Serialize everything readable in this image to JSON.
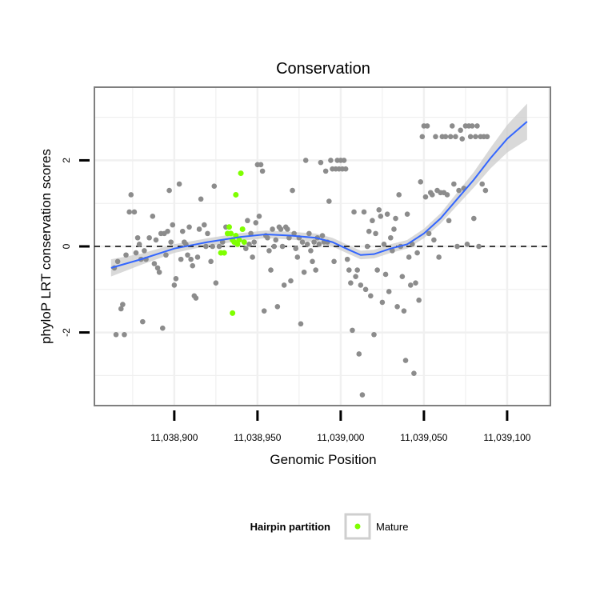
{
  "chart_data": {
    "type": "scatter",
    "title": "Conservation",
    "xlabel": "Genomic Position",
    "ylabel": "phyloP LRT conservation scores",
    "xlim": [
      11038852,
      11039126
    ],
    "ylim": [
      -3.7,
      3.7
    ],
    "x_ticks": [
      11038900,
      11038950,
      11039000,
      11039050,
      11039100
    ],
    "x_tick_labels": [
      "11,038,900",
      "11,038,950",
      "11,039,000",
      "11,039,050",
      "11,039,100"
    ],
    "y_ticks": [
      -2,
      0,
      2
    ],
    "y_tick_labels": [
      "-2",
      "0",
      "2"
    ],
    "reference_line_y": 0,
    "grid": true,
    "legend": {
      "title": "Hairpin partition",
      "placement": "bottom",
      "entries": [
        {
          "label": "Mature",
          "color": "#7FFF00"
        }
      ]
    },
    "colors": {
      "points": "#8c8c8c",
      "mature": "#7FFF00",
      "smooth_line": "#3366FF",
      "confidence_band": "#cccccc",
      "panel_background": "#ffffff",
      "grid": "#f0f0f0",
      "panel_border": "#7f7f7f"
    },
    "series": [
      {
        "name": "Mature",
        "points": [
          [
            11038932,
            0.3
          ],
          [
            11038933,
            0.45
          ],
          [
            11038934,
            0.3
          ],
          [
            11038935,
            0.15
          ],
          [
            11038936,
            0.1
          ],
          [
            11038937,
            0.25
          ],
          [
            11038938,
            0.05
          ],
          [
            11038939,
            0.15
          ],
          [
            11038940,
            1.7
          ],
          [
            11038937,
            1.2
          ],
          [
            11038941,
            0.4
          ],
          [
            11038942,
            0.1
          ],
          [
            11038928,
            -0.15
          ],
          [
            11038930,
            -0.15
          ],
          [
            11038935,
            -1.55
          ]
        ]
      },
      {
        "name": "",
        "points": [
          [
            11038864,
            -0.5
          ],
          [
            11038865,
            -2.05
          ],
          [
            11038866,
            -0.35
          ],
          [
            11038868,
            -1.45
          ],
          [
            11038869,
            -1.35
          ],
          [
            11038870,
            -2.05
          ],
          [
            11038871,
            -0.2
          ],
          [
            11038873,
            0.8
          ],
          [
            11038874,
            1.2
          ],
          [
            11038876,
            0.8
          ],
          [
            11038877,
            -0.15
          ],
          [
            11038878,
            0.2
          ],
          [
            11038879,
            0.05
          ],
          [
            11038880,
            -0.3
          ],
          [
            11038881,
            -1.75
          ],
          [
            11038882,
            -0.1
          ],
          [
            11038883,
            -0.3
          ],
          [
            11038885,
            0.2
          ],
          [
            11038887,
            0.7
          ],
          [
            11038888,
            -0.4
          ],
          [
            11038889,
            0.15
          ],
          [
            11038890,
            -0.5
          ],
          [
            11038891,
            -0.6
          ],
          [
            11038892,
            0.3
          ],
          [
            11038893,
            -1.9
          ],
          [
            11038894,
            0.3
          ],
          [
            11038895,
            -0.2
          ],
          [
            11038896,
            0.35
          ],
          [
            11038897,
            1.3
          ],
          [
            11038898,
            0.1
          ],
          [
            11038899,
            0.5
          ],
          [
            11038900,
            -0.9
          ],
          [
            11038901,
            -0.75
          ],
          [
            11038903,
            1.45
          ],
          [
            11038904,
            -0.3
          ],
          [
            11038905,
            0.35
          ],
          [
            11038906,
            0.1
          ],
          [
            11038907,
            0.05
          ],
          [
            11038908,
            -0.2
          ],
          [
            11038909,
            0.45
          ],
          [
            11038910,
            -0.3
          ],
          [
            11038911,
            -0.45
          ],
          [
            11038912,
            -1.15
          ],
          [
            11038913,
            -1.2
          ],
          [
            11038914,
            -0.25
          ],
          [
            11038915,
            0.4
          ],
          [
            11038916,
            1.1
          ],
          [
            11038918,
            0.5
          ],
          [
            11038919,
            0.0
          ],
          [
            11038920,
            0.3
          ],
          [
            11038922,
            -0.35
          ],
          [
            11038923,
            0.0
          ],
          [
            11038924,
            1.4
          ],
          [
            11038925,
            -0.85
          ],
          [
            11038927,
            0.0
          ],
          [
            11038929,
            0.1
          ],
          [
            11038931,
            0.45
          ],
          [
            11038943,
            -0.05
          ],
          [
            11038944,
            0.6
          ],
          [
            11038945,
            0.05
          ],
          [
            11038946,
            0.3
          ],
          [
            11038947,
            -0.25
          ],
          [
            11038948,
            0.1
          ],
          [
            11038949,
            0.55
          ],
          [
            11038950,
            1.9
          ],
          [
            11038951,
            0.7
          ],
          [
            11038952,
            1.9
          ],
          [
            11038953,
            1.75
          ],
          [
            11038954,
            -1.5
          ],
          [
            11038955,
            0.25
          ],
          [
            11038956,
            0.2
          ],
          [
            11038957,
            -0.1
          ],
          [
            11038958,
            -0.55
          ],
          [
            11038959,
            0.4
          ],
          [
            11038960,
            0.0
          ],
          [
            11038961,
            0.15
          ],
          [
            11038962,
            -1.4
          ],
          [
            11038963,
            0.45
          ],
          [
            11038964,
            0.4
          ],
          [
            11038965,
            0.0
          ],
          [
            11038966,
            -0.9
          ],
          [
            11038967,
            0.45
          ],
          [
            11038968,
            0.4
          ],
          [
            11038969,
            0.2
          ],
          [
            11038970,
            -0.8
          ],
          [
            11038971,
            1.3
          ],
          [
            11038972,
            0.3
          ],
          [
            11038973,
            -0.05
          ],
          [
            11038974,
            -0.25
          ],
          [
            11038975,
            0.2
          ],
          [
            11038976,
            -1.8
          ],
          [
            11038977,
            0.1
          ],
          [
            11038978,
            -0.6
          ],
          [
            11038979,
            2.0
          ],
          [
            11038980,
            0.05
          ],
          [
            11038981,
            0.3
          ],
          [
            11038982,
            -0.1
          ],
          [
            11038983,
            -0.35
          ],
          [
            11038984,
            0.1
          ],
          [
            11038985,
            -0.55
          ],
          [
            11038986,
            0.2
          ],
          [
            11038987,
            0.05
          ],
          [
            11038988,
            1.95
          ],
          [
            11038989,
            0.25
          ],
          [
            11038990,
            0.1
          ],
          [
            11038991,
            1.75
          ],
          [
            11038992,
            0.1
          ],
          [
            11038993,
            1.05
          ],
          [
            11038994,
            2.0
          ],
          [
            11038995,
            1.8
          ],
          [
            11038996,
            -0.35
          ],
          [
            11038997,
            1.8
          ],
          [
            11038998,
            2.0
          ],
          [
            11038999,
            1.8
          ],
          [
            11039000,
            2.0
          ],
          [
            11039001,
            1.8
          ],
          [
            11039002,
            2.0
          ],
          [
            11039003,
            1.8
          ],
          [
            11039004,
            -0.3
          ],
          [
            11039005,
            -0.55
          ],
          [
            11039006,
            -0.85
          ],
          [
            11039007,
            -1.95
          ],
          [
            11039008,
            0.8
          ],
          [
            11039009,
            -0.7
          ],
          [
            11039010,
            -0.55
          ],
          [
            11039011,
            -2.5
          ],
          [
            11039012,
            -0.9
          ],
          [
            11039013,
            -3.45
          ],
          [
            11039014,
            0.8
          ],
          [
            11039015,
            -1.0
          ],
          [
            11039016,
            0.0
          ],
          [
            11039017,
            0.35
          ],
          [
            11039018,
            -1.15
          ],
          [
            11039019,
            0.6
          ],
          [
            11039020,
            -2.05
          ],
          [
            11039021,
            0.3
          ],
          [
            11039022,
            -0.55
          ],
          [
            11039023,
            0.85
          ],
          [
            11039024,
            0.7
          ],
          [
            11039025,
            -1.3
          ],
          [
            11039026,
            0.05
          ],
          [
            11039027,
            -0.65
          ],
          [
            11039028,
            0.75
          ],
          [
            11039029,
            -1.05
          ],
          [
            11039030,
            0.2
          ],
          [
            11039031,
            -0.1
          ],
          [
            11039032,
            0.4
          ],
          [
            11039033,
            0.65
          ],
          [
            11039034,
            -1.4
          ],
          [
            11039035,
            1.2
          ],
          [
            11039036,
            0.0
          ],
          [
            11039037,
            -0.7
          ],
          [
            11039038,
            -1.5
          ],
          [
            11039039,
            -2.65
          ],
          [
            11039040,
            0.75
          ],
          [
            11039041,
            -0.25
          ],
          [
            11039042,
            -0.9
          ],
          [
            11039043,
            0.05
          ],
          [
            11039044,
            -2.95
          ],
          [
            11039045,
            -0.85
          ],
          [
            11039046,
            -0.15
          ],
          [
            11039047,
            -1.25
          ],
          [
            11039048,
            1.5
          ],
          [
            11039049,
            2.55
          ],
          [
            11039050,
            2.8
          ],
          [
            11039051,
            1.15
          ],
          [
            11039052,
            2.8
          ],
          [
            11039053,
            0.3
          ],
          [
            11039054,
            1.25
          ],
          [
            11039055,
            1.2
          ],
          [
            11039056,
            0.15
          ],
          [
            11039057,
            2.55
          ],
          [
            11039058,
            1.3
          ],
          [
            11039059,
            -0.25
          ],
          [
            11039060,
            1.25
          ],
          [
            11039061,
            2.55
          ],
          [
            11039062,
            1.25
          ],
          [
            11039063,
            2.55
          ],
          [
            11039064,
            1.2
          ],
          [
            11039065,
            0.6
          ],
          [
            11039066,
            2.55
          ],
          [
            11039067,
            2.8
          ],
          [
            11039068,
            1.45
          ],
          [
            11039069,
            2.55
          ],
          [
            11039070,
            0.0
          ],
          [
            11039071,
            1.3
          ],
          [
            11039072,
            2.7
          ],
          [
            11039073,
            2.5
          ],
          [
            11039074,
            1.35
          ],
          [
            11039075,
            2.8
          ],
          [
            11039076,
            0.05
          ],
          [
            11039077,
            2.8
          ],
          [
            11039078,
            2.55
          ],
          [
            11039079,
            2.8
          ],
          [
            11039080,
            0.65
          ],
          [
            11039081,
            2.55
          ],
          [
            11039082,
            2.8
          ],
          [
            11039083,
            0.0
          ],
          [
            11039084,
            2.55
          ],
          [
            11039085,
            1.45
          ],
          [
            11039086,
            2.55
          ],
          [
            11039087,
            1.3
          ],
          [
            11039088,
            2.55
          ]
        ]
      }
    ],
    "smooth_fit": {
      "x": [
        11038862,
        11038880,
        11038900,
        11038920,
        11038940,
        11038955,
        11038970,
        11038985,
        11038995,
        11039005,
        11039012,
        11039020,
        11039030,
        11039040,
        11039050,
        11039060,
        11039070,
        11039080,
        11039090,
        11039100,
        11039112
      ],
      "y": [
        -0.5,
        -0.3,
        -0.05,
        0.1,
        0.22,
        0.28,
        0.25,
        0.2,
        0.1,
        -0.08,
        -0.2,
        -0.18,
        -0.05,
        0.05,
        0.3,
        0.65,
        1.1,
        1.55,
        2.05,
        2.5,
        2.9
      ],
      "ci_halfwidth": [
        0.2,
        0.13,
        0.1,
        0.09,
        0.09,
        0.09,
        0.09,
        0.1,
        0.1,
        0.1,
        0.1,
        0.1,
        0.1,
        0.1,
        0.11,
        0.12,
        0.15,
        0.18,
        0.24,
        0.32,
        0.42
      ]
    }
  }
}
